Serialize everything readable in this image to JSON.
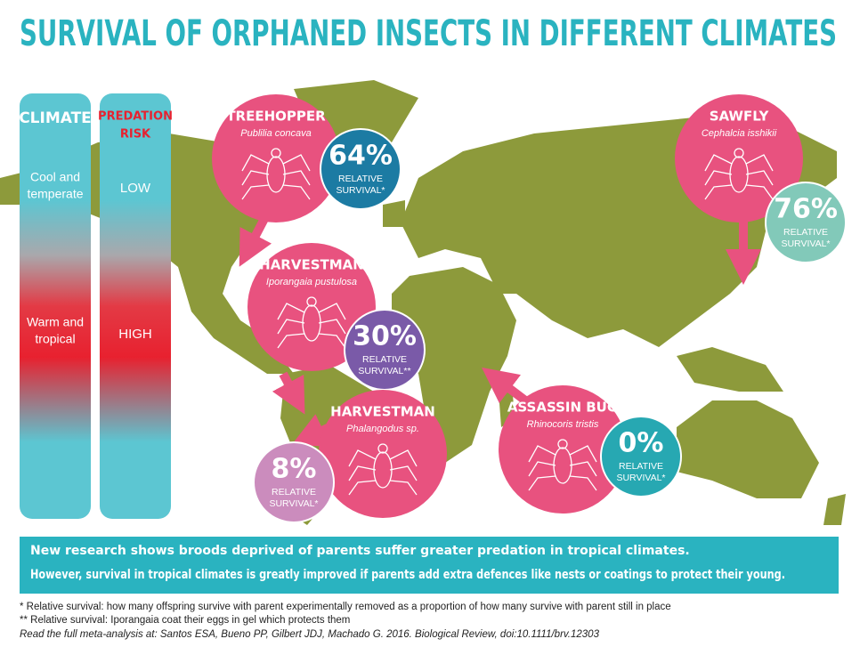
{
  "title": "SURVIVAL OF ORPHANED INSECTS IN DIFFERENT CLIMATES",
  "climate": {
    "header": "CLIMATE",
    "cool": [
      "Cool and",
      "temperate"
    ],
    "warm": [
      "Warm and",
      "tropical"
    ]
  },
  "predation": {
    "header": [
      "PREDATION",
      "RISK"
    ],
    "low": "LOW",
    "high": "HIGH"
  },
  "insects": [
    {
      "name": "TREEHOPPER",
      "species": "Publilia concava",
      "survival": "64%",
      "survival_label": [
        "RELATIVE",
        "SURVIVAL*"
      ]
    },
    {
      "name": "SAWFLY",
      "species": "Cephalcia isshikii",
      "survival": "76%",
      "survival_label": [
        "RELATIVE",
        "SURVIVAL*"
      ]
    },
    {
      "name": "HARVESTMAN",
      "species": "Iporangaia pustulosa",
      "survival": "30%",
      "survival_label": [
        "RELATIVE",
        "SURVIVAL**"
      ]
    },
    {
      "name": "HARVESTMAN",
      "species": "Phalangodus sp.",
      "survival": "8%",
      "survival_label": [
        "RELATIVE",
        "SURVIVAL*"
      ]
    },
    {
      "name": "ASSASSIN BUG",
      "species": "Rhinocoris tristis",
      "survival": "0%",
      "survival_label": [
        "RELATIVE",
        "SURVIVAL*"
      ]
    }
  ],
  "banner": [
    "New research shows broods deprived of parents suffer greater predation in tropical climates.",
    "However, survival in tropical climates is greatly improved if parents add extra defences like nests or coatings to protect their young."
  ],
  "footnotes": [
    "*    Relative survival: how many offspring survive with parent experimentally removed as a proportion of how many survive with parent still in place",
    "**  Relative survival: Iporangaia coat their eggs in gel which protects them",
    "Read the full meta-analysis at: Santos ESA, Bueno PP, Gilbert JDJ, Machado G. 2016. Biological Review, doi:10.1111/brv.12303"
  ]
}
